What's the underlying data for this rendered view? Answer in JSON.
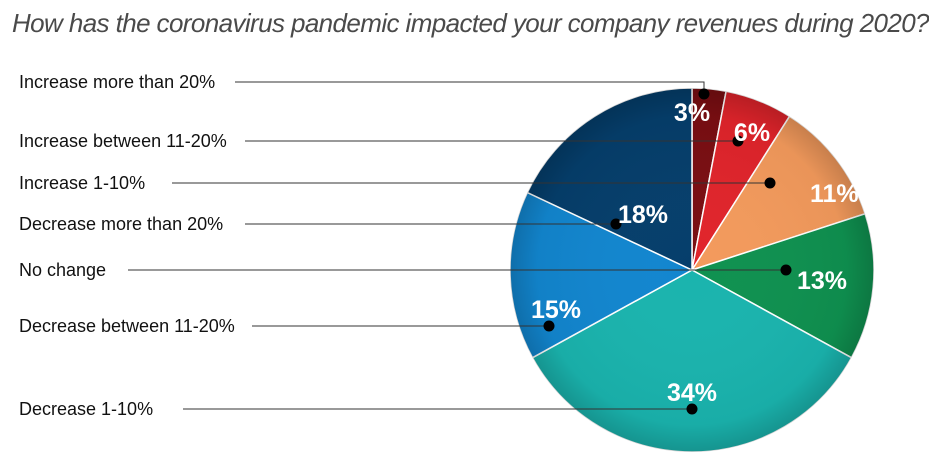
{
  "chart_data": {
    "type": "pie",
    "title": "How has the coronavirus pandemic impacted your company revenues during 2020?",
    "slices": [
      {
        "label": "Increase more than 20%",
        "value": 3,
        "value_label": "3%",
        "color": "#7a0e12"
      },
      {
        "label": "Increase between 11-20%",
        "value": 6,
        "value_label": "6%",
        "color": "#e0242b"
      },
      {
        "label": "Increase 1-10%",
        "value": 11,
        "value_label": "11%",
        "color": "#f39a5c"
      },
      {
        "label": "No change",
        "value": 13,
        "value_label": "13%",
        "color": "#0f9150"
      },
      {
        "label": "Decrease 1-10%",
        "value": 34,
        "value_label": "34%",
        "color": "#1ab4ae"
      },
      {
        "label": "Decrease between 11-20%",
        "value": 15,
        "value_label": "15%",
        "color": "#1286cf"
      },
      {
        "label": "Decrease more than 20%",
        "value": 18,
        "value_label": "18%",
        "color": "#053e6b"
      }
    ],
    "legend_order": [
      "Increase more than 20%",
      "Increase between 11-20%",
      "Increase 1-10%",
      "Decrease more than 20%",
      "No change",
      "Decrease between 11-20%",
      "Decrease 1-10%"
    ]
  }
}
